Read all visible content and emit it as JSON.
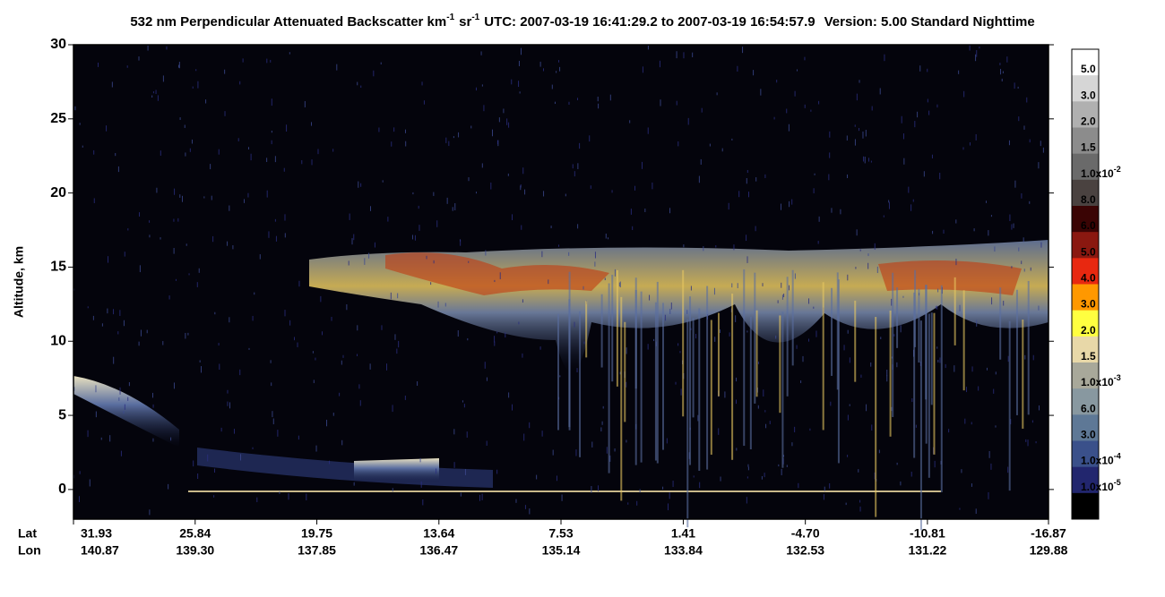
{
  "chart_data": {
    "type": "curtain",
    "title": [
      {
        "text": "532 nm Perpendicular Attenuated Backscatter km"
      },
      {
        "text": "-1",
        "sup": true
      },
      {
        "text": "sr"
      },
      {
        "text": "-1",
        "sup": true
      },
      {
        "text": "UTC: 2007-03-19 16:41:29.2 to 2007-03-19 16:54:57.9"
      },
      {
        "text": "Version: 5.00 Standard Nighttime"
      }
    ],
    "y_label": "Altitude, km",
    "ylim": [
      -2,
      30
    ],
    "yticks": [
      0,
      5,
      10,
      15,
      20,
      25,
      30
    ],
    "xlim": [
      31.93,
      -16.87
    ],
    "x_row_labels": [
      "Lat",
      "Lon"
    ],
    "xticks": [
      31.93,
      25.84,
      19.75,
      13.64,
      7.53,
      1.41,
      {
        "value": -4.7,
        "label": "-4.70"
      },
      -10.81,
      -16.87
    ],
    "lon_labels": [
      "140.87",
      "139.30",
      "137.85",
      "136.47",
      "135.14",
      "133.84",
      "132.53",
      "131.22",
      "129.88"
    ],
    "colorbar": {
      "colors": [
        "#ffffff",
        "#d6d6d6",
        "#b0b0b0",
        "#8c8c8c",
        "#6a6a6a",
        "#4a4240",
        "#3a0404",
        "#8a1810",
        "#e82810",
        "#ff9800",
        "#ffff40",
        "#e8d8a8",
        "#a8a89a",
        "#8898a0",
        "#5e7896",
        "#3a508a",
        "#22266e",
        "#000000"
      ],
      "labels": [
        {
          "base": "5.0"
        },
        {
          "base": "3.0"
        },
        {
          "base": "2.0"
        },
        {
          "base": "1.5"
        },
        {
          "base": "1.0x10",
          "sup": "-2"
        },
        {
          "base": "8.0"
        },
        {
          "base": "6.0"
        },
        {
          "base": "5.0"
        },
        {
          "base": "4.0"
        },
        {
          "base": "3.0"
        },
        {
          "base": "2.0"
        },
        {
          "base": "1.5"
        },
        {
          "base": "1.0x10",
          "sup": "-3"
        },
        {
          "base": "6.0"
        },
        {
          "base": "3.0"
        },
        {
          "base": "1.0x10",
          "sup": "-4"
        },
        {
          "base": "1.0x10",
          "sup": "-5"
        }
      ]
    }
  }
}
